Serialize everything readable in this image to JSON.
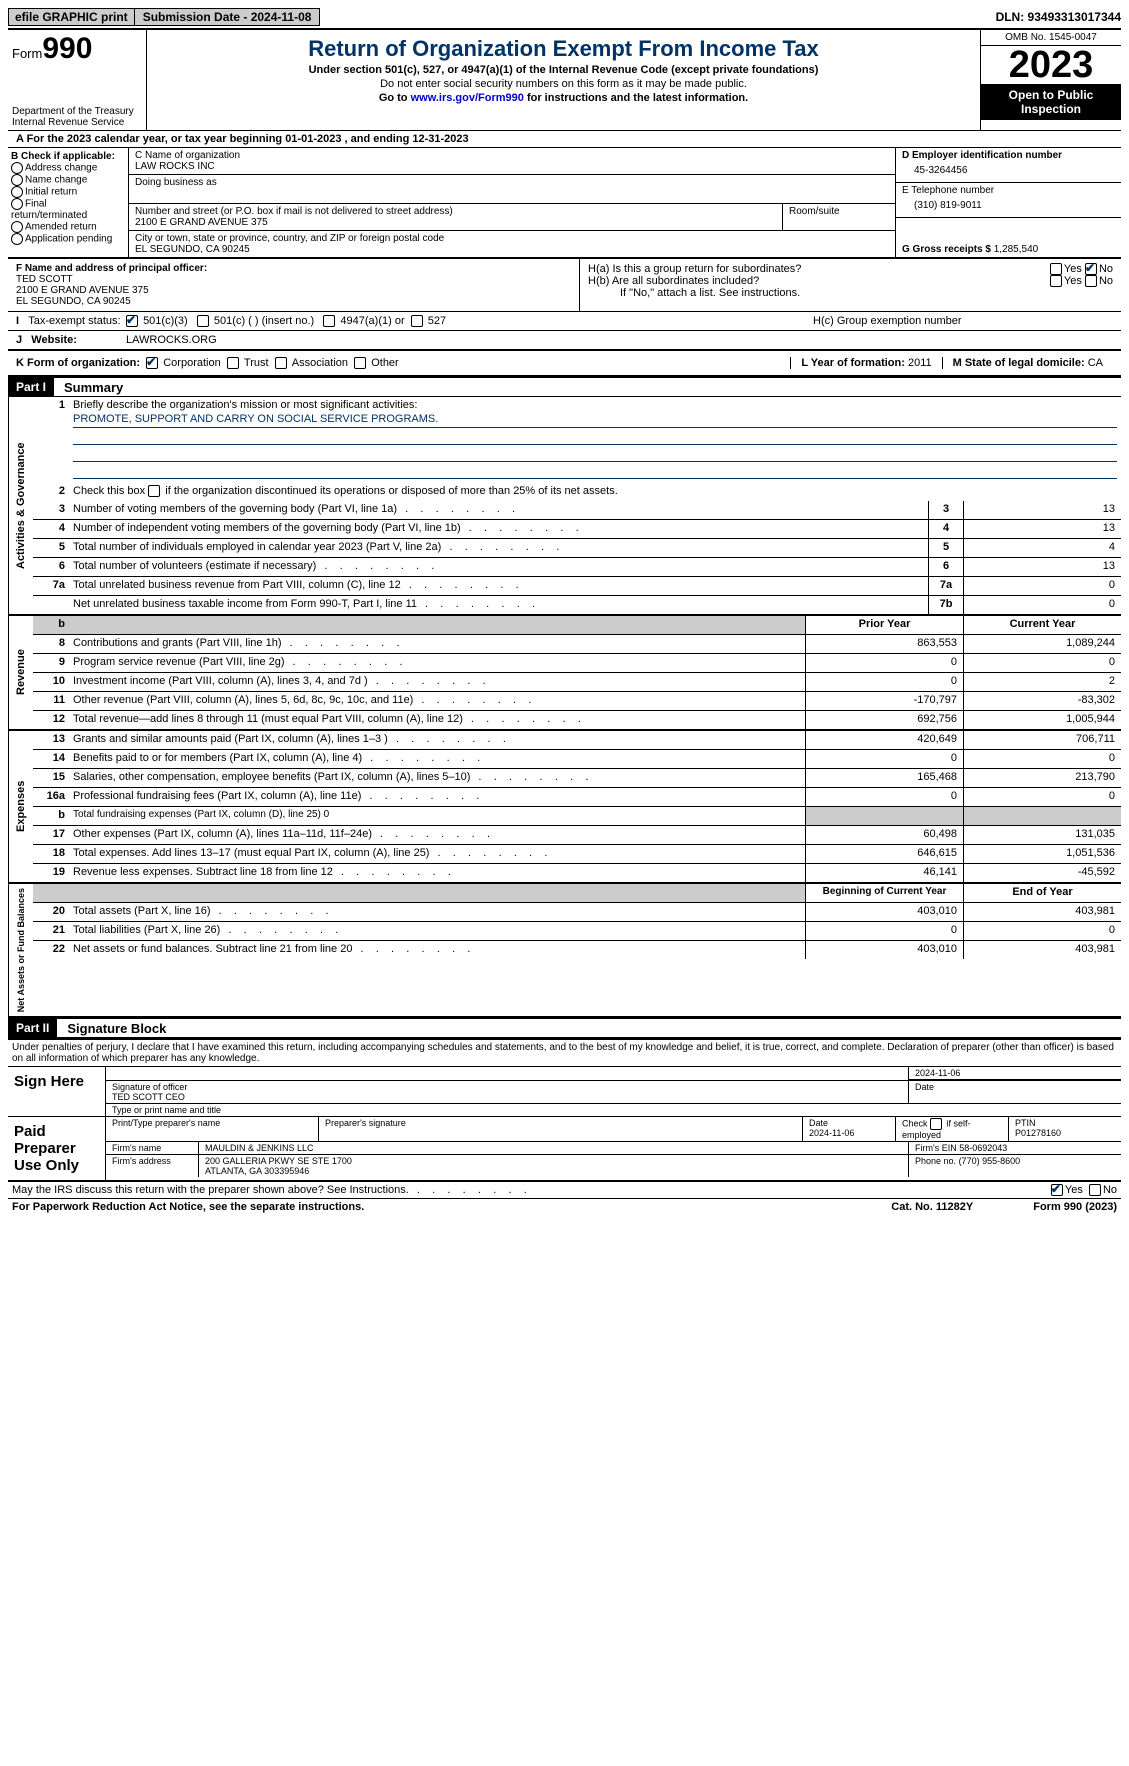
{
  "topbar": {
    "efile": "efile GRAPHIC print",
    "submission": "Submission Date - 2024-11-08",
    "dln": "DLN: 93493313017344"
  },
  "header": {
    "form_prefix": "Form",
    "form_num": "990",
    "dept": "Department of the Treasury Internal Revenue Service",
    "title": "Return of Organization Exempt From Income Tax",
    "sub1": "Under section 501(c), 527, or 4947(a)(1) of the Internal Revenue Code (except private foundations)",
    "sub2": "Do not enter social security numbers on this form as it may be made public.",
    "sub3_a": "Go to ",
    "sub3_link": "www.irs.gov/Form990",
    "sub3_b": " for instructions and the latest information.",
    "omb": "OMB No. 1545-0047",
    "year": "2023",
    "inspection": "Open to Public Inspection"
  },
  "line_a": "A For the 2023 calendar year, or tax year beginning 01-01-2023   , and ending 12-31-2023",
  "box_b": {
    "title": "B Check if applicable:",
    "items": [
      "Address change",
      "Name change",
      "Initial return",
      "Final return/terminated",
      "Amended return",
      "Application pending"
    ]
  },
  "box_c": {
    "name_label": "C Name of organization",
    "name": "LAW ROCKS INC",
    "dba_label": "Doing business as",
    "addr_label": "Number and street (or P.O. box if mail is not delivered to street address)",
    "room_label": "Room/suite",
    "addr": "2100 E GRAND AVENUE 375",
    "city_label": "City or town, state or province, country, and ZIP or foreign postal code",
    "city": "EL SEGUNDO, CA  90245"
  },
  "box_d": {
    "ein_label": "D Employer identification number",
    "ein": "45-3264456",
    "phone_label": "E Telephone number",
    "phone": "(310) 819-9011",
    "gross_label": "G Gross receipts $",
    "gross": "1,285,540"
  },
  "box_f": {
    "label": "F  Name and address of principal officer:",
    "name": "TED SCOTT",
    "addr1": "2100 E GRAND AVENUE 375",
    "addr2": "EL SEGUNDO, CA  90245"
  },
  "box_h": {
    "a": "H(a)  Is this a group return for subordinates?",
    "b": "H(b)  Are all subordinates included?",
    "b_note": "If \"No,\" attach a list. See instructions.",
    "c": "H(c)  Group exemption number"
  },
  "tax_exempt": {
    "label": "Tax-exempt status:",
    "opts": [
      "501(c)(3)",
      "501(c) (  ) (insert no.)",
      "4947(a)(1) or",
      "527"
    ]
  },
  "website": {
    "label": "Website:",
    "value": "LAWROCKS.ORG"
  },
  "form_k": {
    "label": "K Form of organization:",
    "opts": [
      "Corporation",
      "Trust",
      "Association",
      "Other"
    ],
    "year_label": "L Year of formation:",
    "year": "2011",
    "state_label": "M State of legal domicile:",
    "state": "CA"
  },
  "parts": {
    "p1": "Part I",
    "p1_title": "Summary",
    "p2": "Part II",
    "p2_title": "Signature Block"
  },
  "summary": {
    "q1": "Briefly describe the organization's mission or most significant activities:",
    "mission": "PROMOTE, SUPPORT AND CARRY ON SOCIAL SERVICE PROGRAMS.",
    "q2": "Check this box      if the organization discontinued its operations or disposed of more than 25% of its net assets.",
    "rows_gov": [
      {
        "n": "3",
        "t": "Number of voting members of the governing body (Part VI, line 1a)",
        "b": "3",
        "v": "13"
      },
      {
        "n": "4",
        "t": "Number of independent voting members of the governing body (Part VI, line 1b)",
        "b": "4",
        "v": "13"
      },
      {
        "n": "5",
        "t": "Total number of individuals employed in calendar year 2023 (Part V, line 2a)",
        "b": "5",
        "v": "4"
      },
      {
        "n": "6",
        "t": "Total number of volunteers (estimate if necessary)",
        "b": "6",
        "v": "13"
      },
      {
        "n": "7a",
        "t": "Total unrelated business revenue from Part VIII, column (C), line 12",
        "b": "7a",
        "v": "0"
      },
      {
        "n": "",
        "t": "Net unrelated business taxable income from Form 990-T, Part I, line 11",
        "b": "7b",
        "v": "0"
      }
    ],
    "col_prior": "Prior Year",
    "col_current": "Current Year",
    "rows_rev": [
      {
        "n": "8",
        "t": "Contributions and grants (Part VIII, line 1h)",
        "p": "863,553",
        "c": "1,089,244"
      },
      {
        "n": "9",
        "t": "Program service revenue (Part VIII, line 2g)",
        "p": "0",
        "c": "0"
      },
      {
        "n": "10",
        "t": "Investment income (Part VIII, column (A), lines 3, 4, and 7d )",
        "p": "0",
        "c": "2"
      },
      {
        "n": "11",
        "t": "Other revenue (Part VIII, column (A), lines 5, 6d, 8c, 9c, 10c, and 11e)",
        "p": "-170,797",
        "c": "-83,302"
      },
      {
        "n": "12",
        "t": "Total revenue—add lines 8 through 11 (must equal Part VIII, column (A), line 12)",
        "p": "692,756",
        "c": "1,005,944"
      }
    ],
    "rows_exp": [
      {
        "n": "13",
        "t": "Grants and similar amounts paid (Part IX, column (A), lines 1–3 )",
        "p": "420,649",
        "c": "706,711"
      },
      {
        "n": "14",
        "t": "Benefits paid to or for members (Part IX, column (A), line 4)",
        "p": "0",
        "c": "0"
      },
      {
        "n": "15",
        "t": "Salaries, other compensation, employee benefits (Part IX, column (A), lines 5–10)",
        "p": "165,468",
        "c": "213,790"
      },
      {
        "n": "16a",
        "t": "Professional fundraising fees (Part IX, column (A), line 11e)",
        "p": "0",
        "c": "0"
      },
      {
        "n": "b",
        "t": "Total fundraising expenses (Part IX, column (D), line 25) 0",
        "p": "grey",
        "c": "grey"
      },
      {
        "n": "17",
        "t": "Other expenses (Part IX, column (A), lines 11a–11d, 11f–24e)",
        "p": "60,498",
        "c": "131,035"
      },
      {
        "n": "18",
        "t": "Total expenses. Add lines 13–17 (must equal Part IX, column (A), line 25)",
        "p": "646,615",
        "c": "1,051,536"
      },
      {
        "n": "19",
        "t": "Revenue less expenses. Subtract line 18 from line 12",
        "p": "46,141",
        "c": "-45,592"
      }
    ],
    "col_begin": "Beginning of Current Year",
    "col_end": "End of Year",
    "rows_net": [
      {
        "n": "20",
        "t": "Total assets (Part X, line 16)",
        "p": "403,010",
        "c": "403,981"
      },
      {
        "n": "21",
        "t": "Total liabilities (Part X, line 26)",
        "p": "0",
        "c": "0"
      },
      {
        "n": "22",
        "t": "Net assets or fund balances. Subtract line 21 from line 20",
        "p": "403,010",
        "c": "403,981"
      }
    ]
  },
  "signature": {
    "declaration": "Under penalties of perjury, I declare that I have examined this return, including accompanying schedules and statements, and to the best of my knowledge and belief, it is true, correct, and complete. Declaration of preparer (other than officer) is based on all information of which preparer has any knowledge.",
    "sign_here": "Sign Here",
    "sig_officer": "Signature of officer",
    "officer_name": "TED SCOTT CEO",
    "type_name": "Type or print name and title",
    "date": "Date",
    "date_val": "2024-11-06",
    "paid": "Paid Preparer Use Only",
    "prep_name_label": "Print/Type preparer's name",
    "prep_sig_label": "Preparer's signature",
    "prep_date": "2024-11-06",
    "self_emp": "Check       if self-employed",
    "ptin_label": "PTIN",
    "ptin": "P01278160",
    "firm_name_label": "Firm's name",
    "firm_name": "MAULDIN & JENKINS LLC",
    "firm_ein_label": "Firm's EIN",
    "firm_ein": "58-0692043",
    "firm_addr_label": "Firm's address",
    "firm_addr1": "200 GALLERIA PKWY SE STE 1700",
    "firm_addr2": "ATLANTA, GA  303395946",
    "firm_phone_label": "Phone no.",
    "firm_phone": "(770) 955-8600",
    "discuss": "May the IRS discuss this return with the preparer shown above? See Instructions."
  },
  "footer": {
    "paperwork": "For Paperwork Reduction Act Notice, see the separate instructions.",
    "cat": "Cat. No. 11282Y",
    "form": "Form 990 (2023)"
  }
}
